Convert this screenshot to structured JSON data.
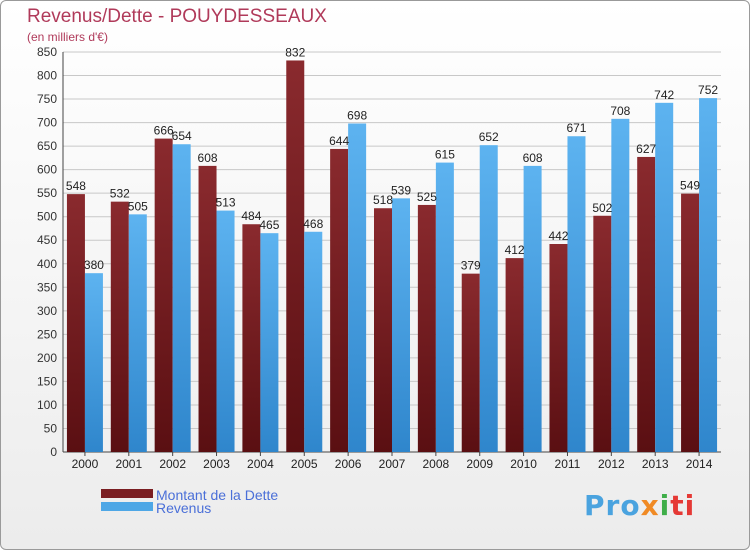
{
  "header": {
    "title": "Revenus/Dette - POUYDESSEAUX",
    "subtitle": "(en milliers d'€)"
  },
  "colors": {
    "debt": "#7a1e22",
    "revenue": "#4ea7e6",
    "title": "#b03a5a",
    "grid": "#c8c8c8"
  },
  "chart_data": {
    "type": "bar",
    "title": "Revenus/Dette - POUYDESSEAUX",
    "subtitle": "(en milliers d'€)",
    "categories": [
      "2000",
      "2001",
      "2002",
      "2003",
      "2004",
      "2005",
      "2006",
      "2007",
      "2008",
      "2009",
      "2010",
      "2011",
      "2012",
      "2013",
      "2014"
    ],
    "series": [
      {
        "name": "Montant de la Dette",
        "values": [
          548,
          532,
          666,
          608,
          484,
          832,
          644,
          518,
          525,
          379,
          412,
          442,
          502,
          627,
          549
        ]
      },
      {
        "name": "Revenus",
        "values": [
          380,
          505,
          654,
          513,
          465,
          468,
          698,
          539,
          615,
          652,
          608,
          671,
          708,
          742,
          752
        ]
      }
    ],
    "ylim": [
      0,
      850
    ],
    "ytick_step": 50,
    "grid": true,
    "legend_position": "bottom-left"
  },
  "legend": {
    "items": [
      "Montant de la Dette",
      "Revenus"
    ]
  },
  "logo": {
    "text": "Proxiti",
    "parts": [
      "Pro",
      "x",
      "i",
      "ti"
    ]
  }
}
